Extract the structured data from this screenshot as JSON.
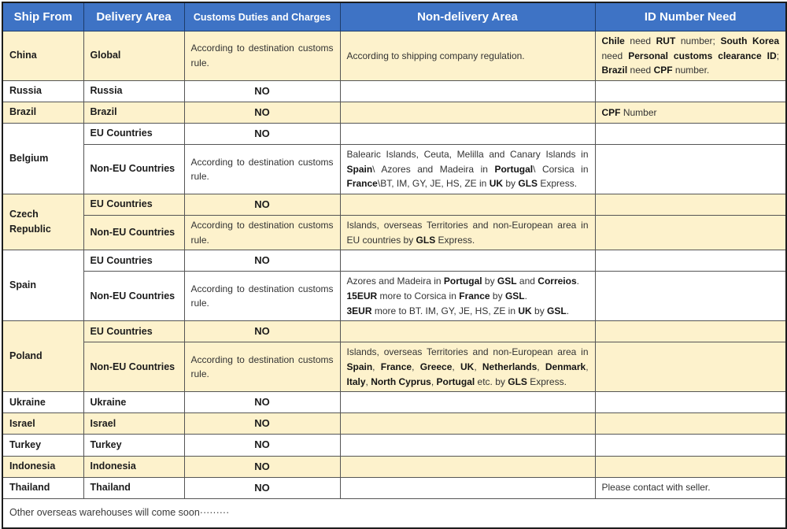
{
  "table": {
    "header": [
      "Ship From",
      "Delivery Area",
      "Customs Duties and Charges",
      "Non-delivery Area",
      "ID Number Need"
    ],
    "customs_default": "According to destination customs rule.",
    "customs_no": "NO",
    "groups": [
      {
        "ship_from": "China",
        "shade": "cream",
        "rows": [
          {
            "area": "Global",
            "customs": "According to destination customs rule.",
            "nd": [
              {
                "t": "According to shipping company regulation."
              }
            ],
            "id": [
              {
                "t": "Chile",
                "b": 1
              },
              {
                "t": " need "
              },
              {
                "t": "RUT",
                "b": 1
              },
              {
                "t": " number; "
              },
              {
                "t": "South Korea",
                "b": 1
              },
              {
                "t": " need "
              },
              {
                "t": "Personal customs clearance ID",
                "b": 1
              },
              {
                "t": "; "
              },
              {
                "t": "Brazil",
                "b": 1
              },
              {
                "t": " need "
              },
              {
                "t": "CPF",
                "b": 1
              },
              {
                "t": " number."
              }
            ]
          }
        ]
      },
      {
        "ship_from": "Russia",
        "shade": "white",
        "rows": [
          {
            "area": "Russia",
            "customs": "NO",
            "nd": [],
            "id": []
          }
        ]
      },
      {
        "ship_from": "Brazil",
        "shade": "cream",
        "rows": [
          {
            "area": "Brazil",
            "customs": "NO",
            "nd": [],
            "id": [
              {
                "t": "CPF",
                "b": 1
              },
              {
                "t": " Number"
              }
            ]
          }
        ]
      },
      {
        "ship_from": "Belgium",
        "shade": "white",
        "rows": [
          {
            "area": "EU Countries",
            "customs": "NO",
            "nd": [],
            "id": []
          },
          {
            "area": "Non-EU Countries",
            "customs": "According to destination customs rule.",
            "nd": [
              {
                "t": "Balearic Islands, Ceuta, Melilla and Canary Islands in "
              },
              {
                "t": "Spain",
                "b": 1
              },
              {
                "t": "\\ Azores and Madeira in "
              },
              {
                "t": "Portugal",
                "b": 1
              },
              {
                "t": "\\ Corsica in "
              },
              {
                "t": "France",
                "b": 1
              },
              {
                "t": "\\BT, IM, GY, JE, HS, ZE in "
              },
              {
                "t": "UK",
                "b": 1
              },
              {
                "t": " by "
              },
              {
                "t": "GLS",
                "b": 1
              },
              {
                "t": " Express."
              }
            ],
            "id": []
          }
        ]
      },
      {
        "ship_from": "Czech Republic",
        "shade": "cream",
        "rows": [
          {
            "area": "EU Countries",
            "customs": "NO",
            "nd": [],
            "id": []
          },
          {
            "area": "Non-EU Countries",
            "customs": "According to destination customs rule.",
            "nd": [
              {
                "t": "Islands, overseas Territories and non-European area in EU countries by "
              },
              {
                "t": "GLS",
                "b": 1
              },
              {
                "t": " Express."
              }
            ],
            "id": []
          }
        ]
      },
      {
        "ship_from": "Spain",
        "shade": "white",
        "rows": [
          {
            "area": "EU Countries",
            "customs": "NO",
            "nd": [],
            "id": []
          },
          {
            "area": "Non-EU Countries",
            "customs": "According to destination customs rule.",
            "nd": [
              {
                "t": "Azores and Madeira in "
              },
              {
                "t": "Portugal",
                "b": 1
              },
              {
                "t": " by "
              },
              {
                "t": "GSL",
                "b": 1
              },
              {
                "t": " and "
              },
              {
                "t": "Correios",
                "b": 1
              },
              {
                "t": "."
              },
              {
                "br": 1
              },
              {
                "t": "15EUR",
                "b": 1
              },
              {
                "t": " more to Corsica in "
              },
              {
                "t": "France",
                "b": 1
              },
              {
                "t": " by "
              },
              {
                "t": "GSL",
                "b": 1
              },
              {
                "t": "."
              },
              {
                "br": 1
              },
              {
                "t": "3EUR",
                "b": 1
              },
              {
                "t": " more to BT. IM, GY, JE, HS, ZE in "
              },
              {
                "t": "UK",
                "b": 1
              },
              {
                "t": " by "
              },
              {
                "t": "GSL",
                "b": 1
              },
              {
                "t": "."
              }
            ],
            "id": []
          }
        ]
      },
      {
        "ship_from": "Poland",
        "shade": "cream",
        "rows": [
          {
            "area": "EU Countries",
            "customs": "NO",
            "nd": [],
            "id": []
          },
          {
            "area": "Non-EU Countries",
            "customs": "According to destination customs rule.",
            "nd": [
              {
                "t": "Islands, overseas Territories and non-European area in "
              },
              {
                "t": "Spain",
                "b": 1
              },
              {
                "t": ", "
              },
              {
                "t": "France",
                "b": 1
              },
              {
                "t": ", "
              },
              {
                "t": "Greece",
                "b": 1
              },
              {
                "t": ", "
              },
              {
                "t": "UK",
                "b": 1
              },
              {
                "t": ", "
              },
              {
                "t": "Netherlands",
                "b": 1
              },
              {
                "t": ", "
              },
              {
                "t": "Denmark",
                "b": 1
              },
              {
                "t": ", "
              },
              {
                "t": "Italy",
                "b": 1
              },
              {
                "t": ", "
              },
              {
                "t": "North Cyprus",
                "b": 1
              },
              {
                "t": ", "
              },
              {
                "t": "Portugal",
                "b": 1
              },
              {
                "t": " etc. by "
              },
              {
                "t": "GLS",
                "b": 1
              },
              {
                "t": " Express."
              }
            ],
            "id": []
          }
        ]
      },
      {
        "ship_from": "Ukraine",
        "shade": "white",
        "rows": [
          {
            "area": "Ukraine",
            "customs": "NO",
            "nd": [],
            "id": []
          }
        ]
      },
      {
        "ship_from": "Israel",
        "shade": "cream",
        "rows": [
          {
            "area": "Israel",
            "customs": "NO",
            "nd": [],
            "id": []
          }
        ]
      },
      {
        "ship_from": "Turkey",
        "shade": "white",
        "rows": [
          {
            "area": "Turkey",
            "customs": "NO",
            "nd": [],
            "id": []
          }
        ]
      },
      {
        "ship_from": "Indonesia",
        "shade": "cream",
        "rows": [
          {
            "area": "Indonesia",
            "customs": "NO",
            "nd": [],
            "id": []
          }
        ]
      },
      {
        "ship_from": "Thailand",
        "shade": "white",
        "rows": [
          {
            "area": "Thailand",
            "customs": "NO",
            "nd": [],
            "id": [
              {
                "t": "Please contact with seller."
              }
            ]
          }
        ]
      }
    ],
    "footer": "Other overseas warehouses will come soon·········"
  },
  "colors": {
    "header_bg": "#3e73c5",
    "row_cream": "#fdf2cc",
    "row_white": "#ffffff",
    "border_dark": "#1c1c1c"
  }
}
